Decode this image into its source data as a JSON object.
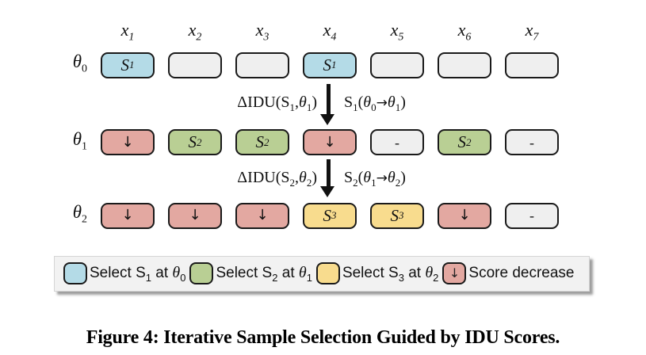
{
  "colors": {
    "select1": "#b4dbe7",
    "select2": "#b9cf94",
    "select3": "#f8dc8e",
    "decrease": "#e3a8a1",
    "empty": "#efefef",
    "border": "#1a1a1a",
    "arrow": "#111111",
    "legend_bg": "#f2f2f2"
  },
  "figure": {
    "columns": [
      {
        "base": "x",
        "sub": "1"
      },
      {
        "base": "x",
        "sub": "2"
      },
      {
        "base": "x",
        "sub": "3"
      },
      {
        "base": "x",
        "sub": "4"
      },
      {
        "base": "x",
        "sub": "5"
      },
      {
        "base": "x",
        "sub": "6"
      },
      {
        "base": "x",
        "sub": "7"
      }
    ],
    "rows": [
      {
        "label": {
          "base": "θ",
          "sub": "0"
        },
        "cells": [
          {
            "state": "select1",
            "base": "S",
            "sub": "1"
          },
          {
            "state": "empty",
            "base": "",
            "sub": ""
          },
          {
            "state": "empty",
            "base": "",
            "sub": ""
          },
          {
            "state": "select1",
            "base": "S",
            "sub": "1"
          },
          {
            "state": "empty",
            "base": "",
            "sub": ""
          },
          {
            "state": "empty",
            "base": "",
            "sub": ""
          },
          {
            "state": "empty",
            "base": "",
            "sub": ""
          }
        ]
      },
      {
        "label": {
          "base": "θ",
          "sub": "1"
        },
        "cells": [
          {
            "state": "decrease",
            "base": "↓",
            "sub": ""
          },
          {
            "state": "select2",
            "base": "S",
            "sub": "2"
          },
          {
            "state": "select2",
            "base": "S",
            "sub": "2"
          },
          {
            "state": "decrease",
            "base": "↓",
            "sub": ""
          },
          {
            "state": "empty",
            "base": "-",
            "sub": ""
          },
          {
            "state": "select2",
            "base": "S",
            "sub": "2"
          },
          {
            "state": "empty",
            "base": "-",
            "sub": ""
          }
        ]
      },
      {
        "label": {
          "base": "θ",
          "sub": "2"
        },
        "cells": [
          {
            "state": "decrease",
            "base": "↓",
            "sub": ""
          },
          {
            "state": "decrease",
            "base": "↓",
            "sub": ""
          },
          {
            "state": "decrease",
            "base": "↓",
            "sub": ""
          },
          {
            "state": "select3",
            "base": "S",
            "sub": "3"
          },
          {
            "state": "select3",
            "base": "S",
            "sub": "3"
          },
          {
            "state": "decrease",
            "base": "↓",
            "sub": ""
          },
          {
            "state": "empty",
            "base": "-",
            "sub": ""
          }
        ]
      }
    ],
    "transitions": [
      {
        "idu": {
          "p1": "ΔIDU(S",
          "sub1": "1",
          "p2": ",",
          "theta": "θ",
          "sub2": "1",
          "p3": ")"
        },
        "step": {
          "p1": "S",
          "sub1": "1",
          "p2": "(",
          "theta1": "θ",
          "sub2": "0",
          "arrow": "→",
          "theta2": "θ",
          "sub3": "1",
          "p3": ")"
        }
      },
      {
        "idu": {
          "p1": "ΔIDU(S",
          "sub1": "2",
          "p2": ",",
          "theta": "θ",
          "sub2": "2",
          "p3": ")"
        },
        "step": {
          "p1": "S",
          "sub1": "2",
          "p2": "(",
          "theta1": "θ",
          "sub2": "1",
          "arrow": "→",
          "theta2": "θ",
          "sub3": "2",
          "p3": ")"
        }
      }
    ],
    "legend": {
      "items": [
        {
          "swatch": "select1",
          "glyph": "",
          "pre": "Select S",
          "sub": "1",
          "mid": " at ",
          "theta": "θ",
          "theta_sub": "0"
        },
        {
          "swatch": "select2",
          "glyph": "",
          "pre": "Select S",
          "sub": "2",
          "mid": " at ",
          "theta": "θ",
          "theta_sub": "1"
        },
        {
          "swatch": "select3",
          "glyph": "",
          "pre": "Select S",
          "sub": "3",
          "mid": " at ",
          "theta": "θ",
          "theta_sub": "2"
        },
        {
          "swatch": "decrease",
          "glyph": "↓",
          "pre": "Score decrease",
          "sub": "",
          "mid": "",
          "theta": "",
          "theta_sub": ""
        }
      ]
    },
    "caption": "Figure 4: Iterative Sample Selection Guided by IDU Scores."
  }
}
